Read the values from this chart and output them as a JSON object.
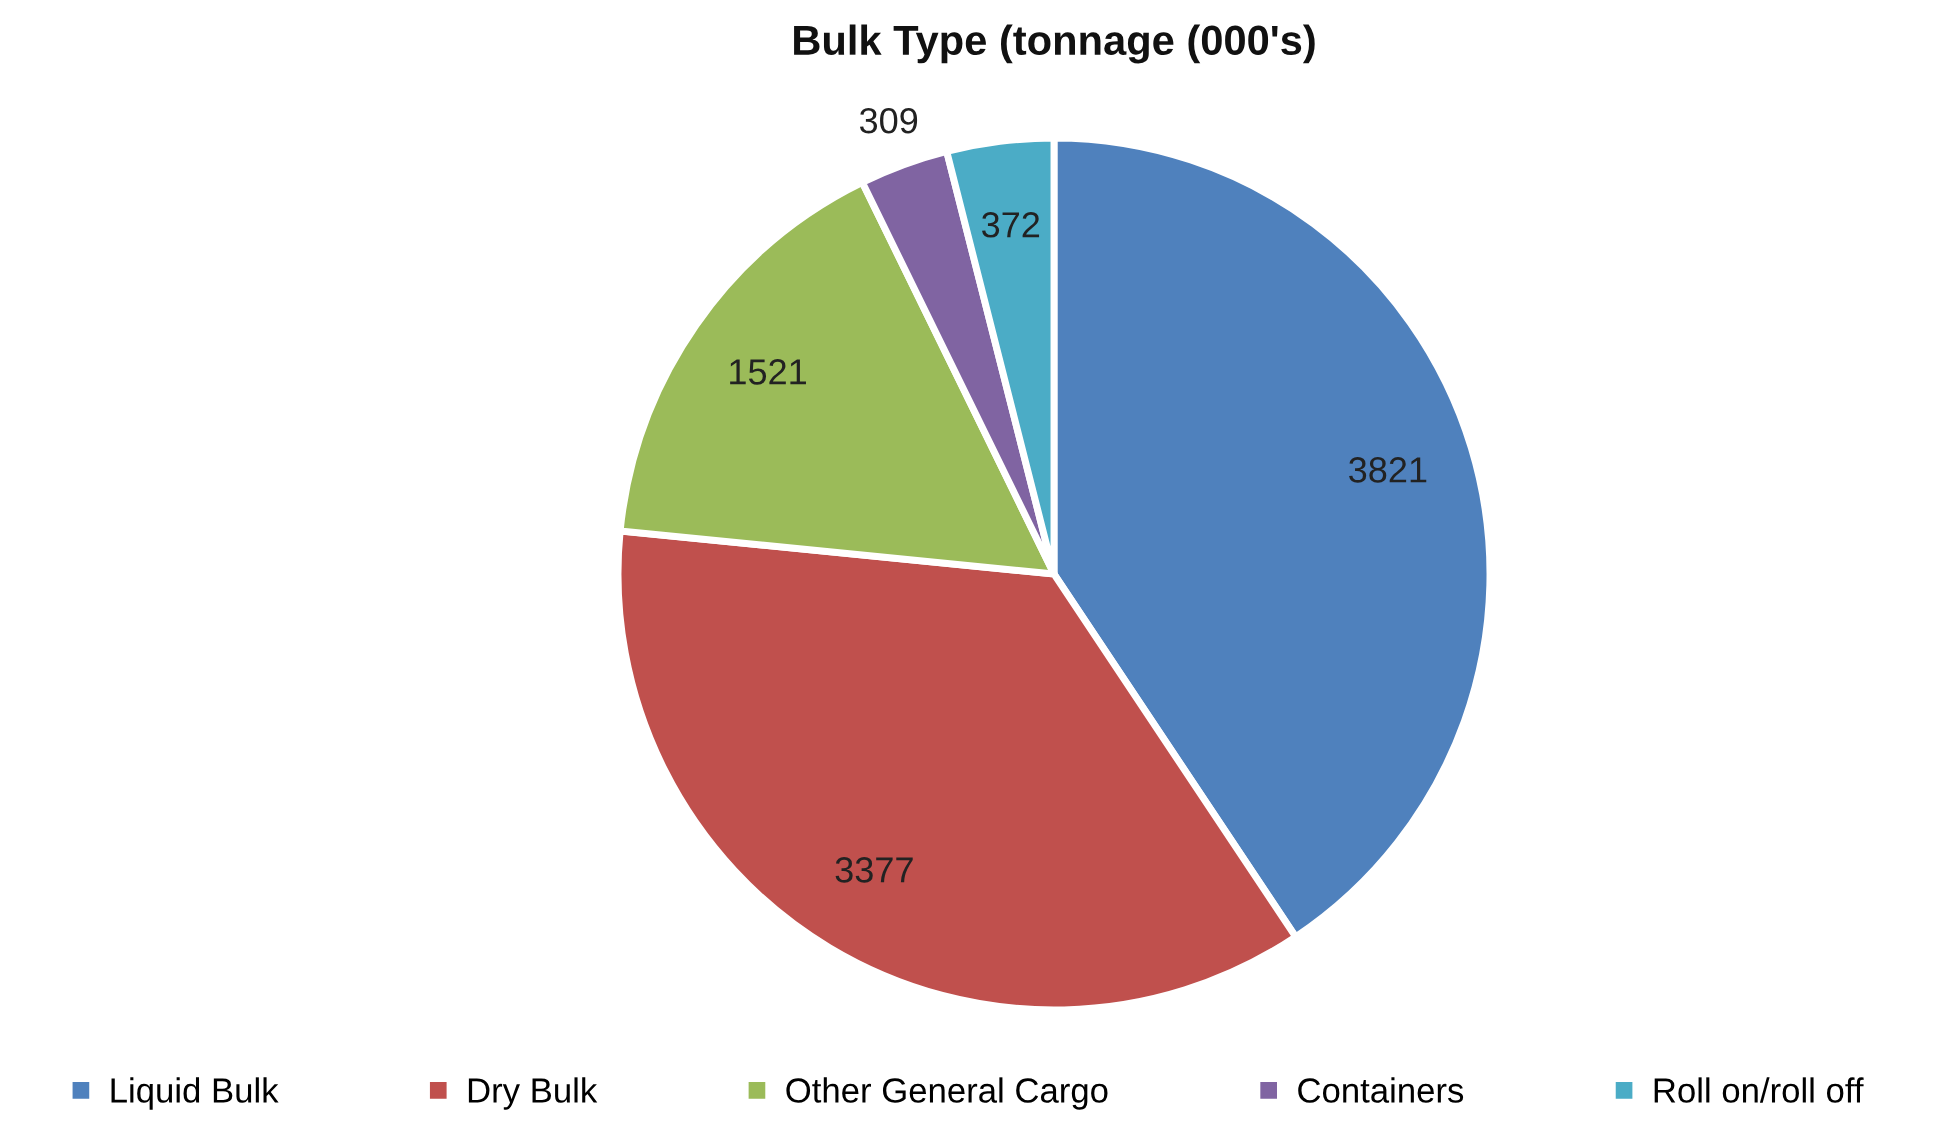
{
  "chart_data": {
    "type": "pie",
    "title": "Bulk Type (tonnage (000's)",
    "categories": [
      "Liquid Bulk",
      "Dry Bulk",
      "Other General Cargo",
      "Containers",
      "Roll on/roll off"
    ],
    "values": [
      3821,
      3377,
      1521,
      309,
      372
    ],
    "colors": [
      "#4f81bd",
      "#c0504d",
      "#9bbb59",
      "#8064a2",
      "#4bacc6"
    ],
    "data_labels": true,
    "legend": "bottom"
  }
}
